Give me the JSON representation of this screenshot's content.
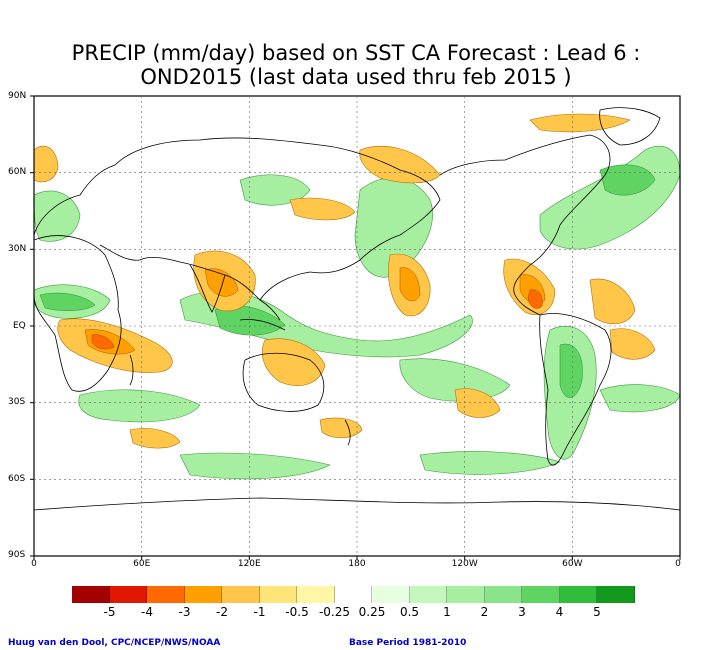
{
  "title": {
    "line1": "PRECIP (mm/day) based on SST CA Forecast : Lead 6 :",
    "line2": "OND2015 (last data used thru feb 2015 )"
  },
  "axes": {
    "lat_labels": [
      "90N",
      "60N",
      "30N",
      "EQ",
      "30S",
      "60S",
      "90S"
    ],
    "lon_labels": [
      "0",
      "60E",
      "120E",
      "180",
      "120W",
      "60W",
      "0"
    ]
  },
  "legend": {
    "colors": [
      "#a50000",
      "#e01800",
      "#ff6a00",
      "#ff9f00",
      "#ffc64a",
      "#ffe47a",
      "#fff6a8",
      "#ffffff",
      "#e6ffe0",
      "#c4f7bc",
      "#a6eea0",
      "#8ae489",
      "#5fd463",
      "#32bc3b",
      "#139a1e"
    ],
    "labels": [
      "-5",
      "-4",
      "-3",
      "-2",
      "-1",
      "-0.5",
      "-0.25",
      "0.25",
      "0.5",
      "1",
      "2",
      "3",
      "4",
      "5"
    ]
  },
  "footer": {
    "author": "Huug van den Dool, CPC/NCEP/NWS/NOAA",
    "base_period": "Base Period 1981-2010"
  }
}
